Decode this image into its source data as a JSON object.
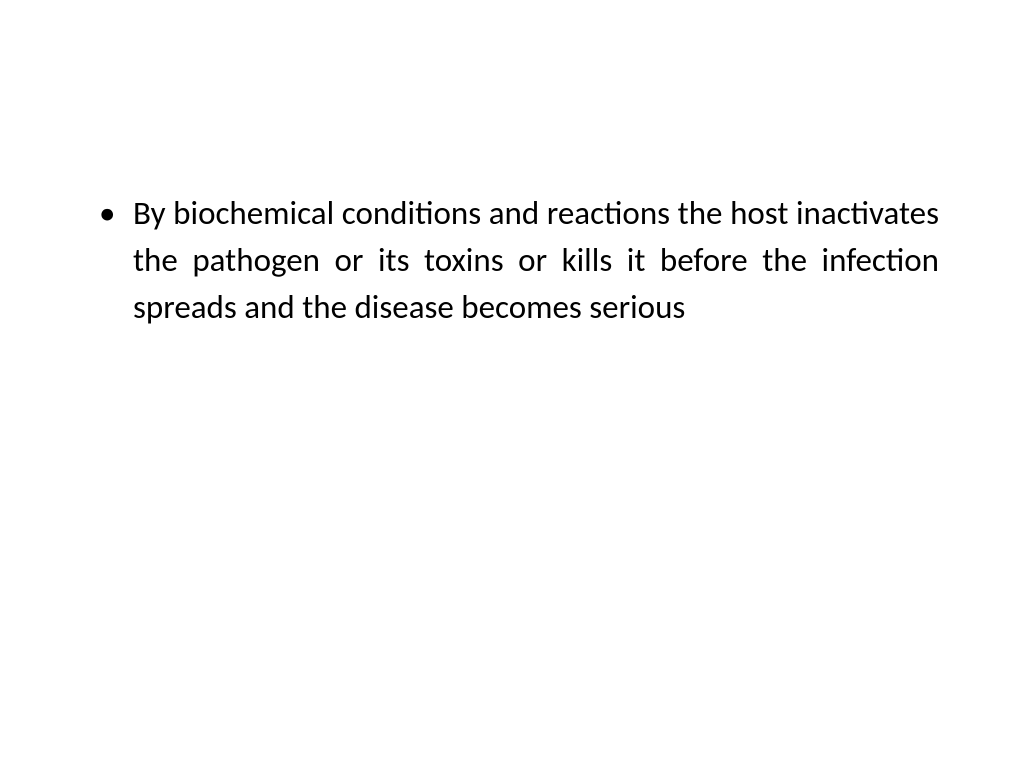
{
  "slide": {
    "background_color": "#ffffff",
    "text_color": "#000000",
    "font_family": "Calibri",
    "font_size_pt": 26,
    "bullets": [
      {
        "text": "By biochemical conditions and reactions the host inactivates the pathogen or its toxins or kills it before the infection spreads and the disease becomes serious"
      }
    ]
  }
}
